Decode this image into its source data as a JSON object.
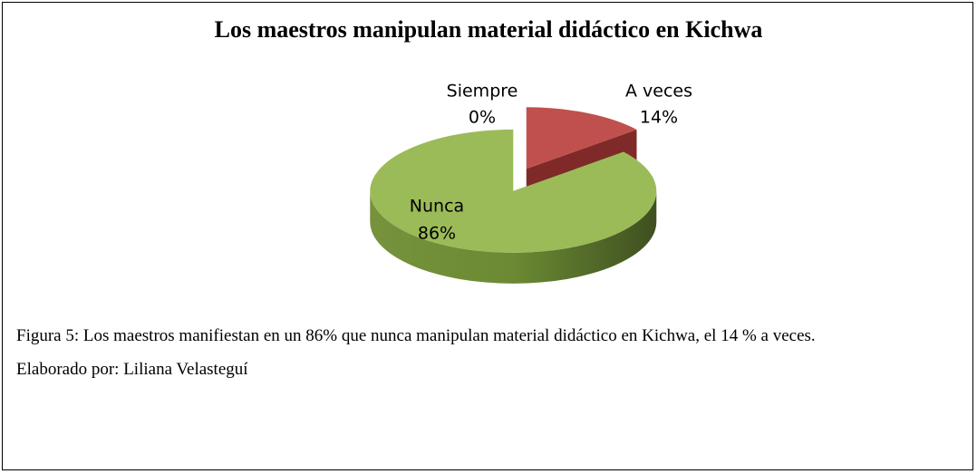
{
  "chart_data": {
    "type": "pie",
    "title": "Los maestros manipulan  material didáctico en Kichwa",
    "categories": [
      "Siempre",
      "A veces",
      "Nunca"
    ],
    "values": [
      0,
      14,
      86
    ],
    "value_labels": [
      "0%",
      "14%",
      "86%"
    ],
    "colors": [
      "#4f81bd",
      "#c0504d",
      "#9bbb59"
    ]
  },
  "caption": {
    "figure_label": "Figura 5:",
    "figure_text": "Los maestros manifiestan  en un 86% que nunca manipulan material didáctico en Kichwa, el 14 % a veces.",
    "credit_label": "Elaborado por:",
    "credit_name": "Liliana Velasteguí"
  }
}
